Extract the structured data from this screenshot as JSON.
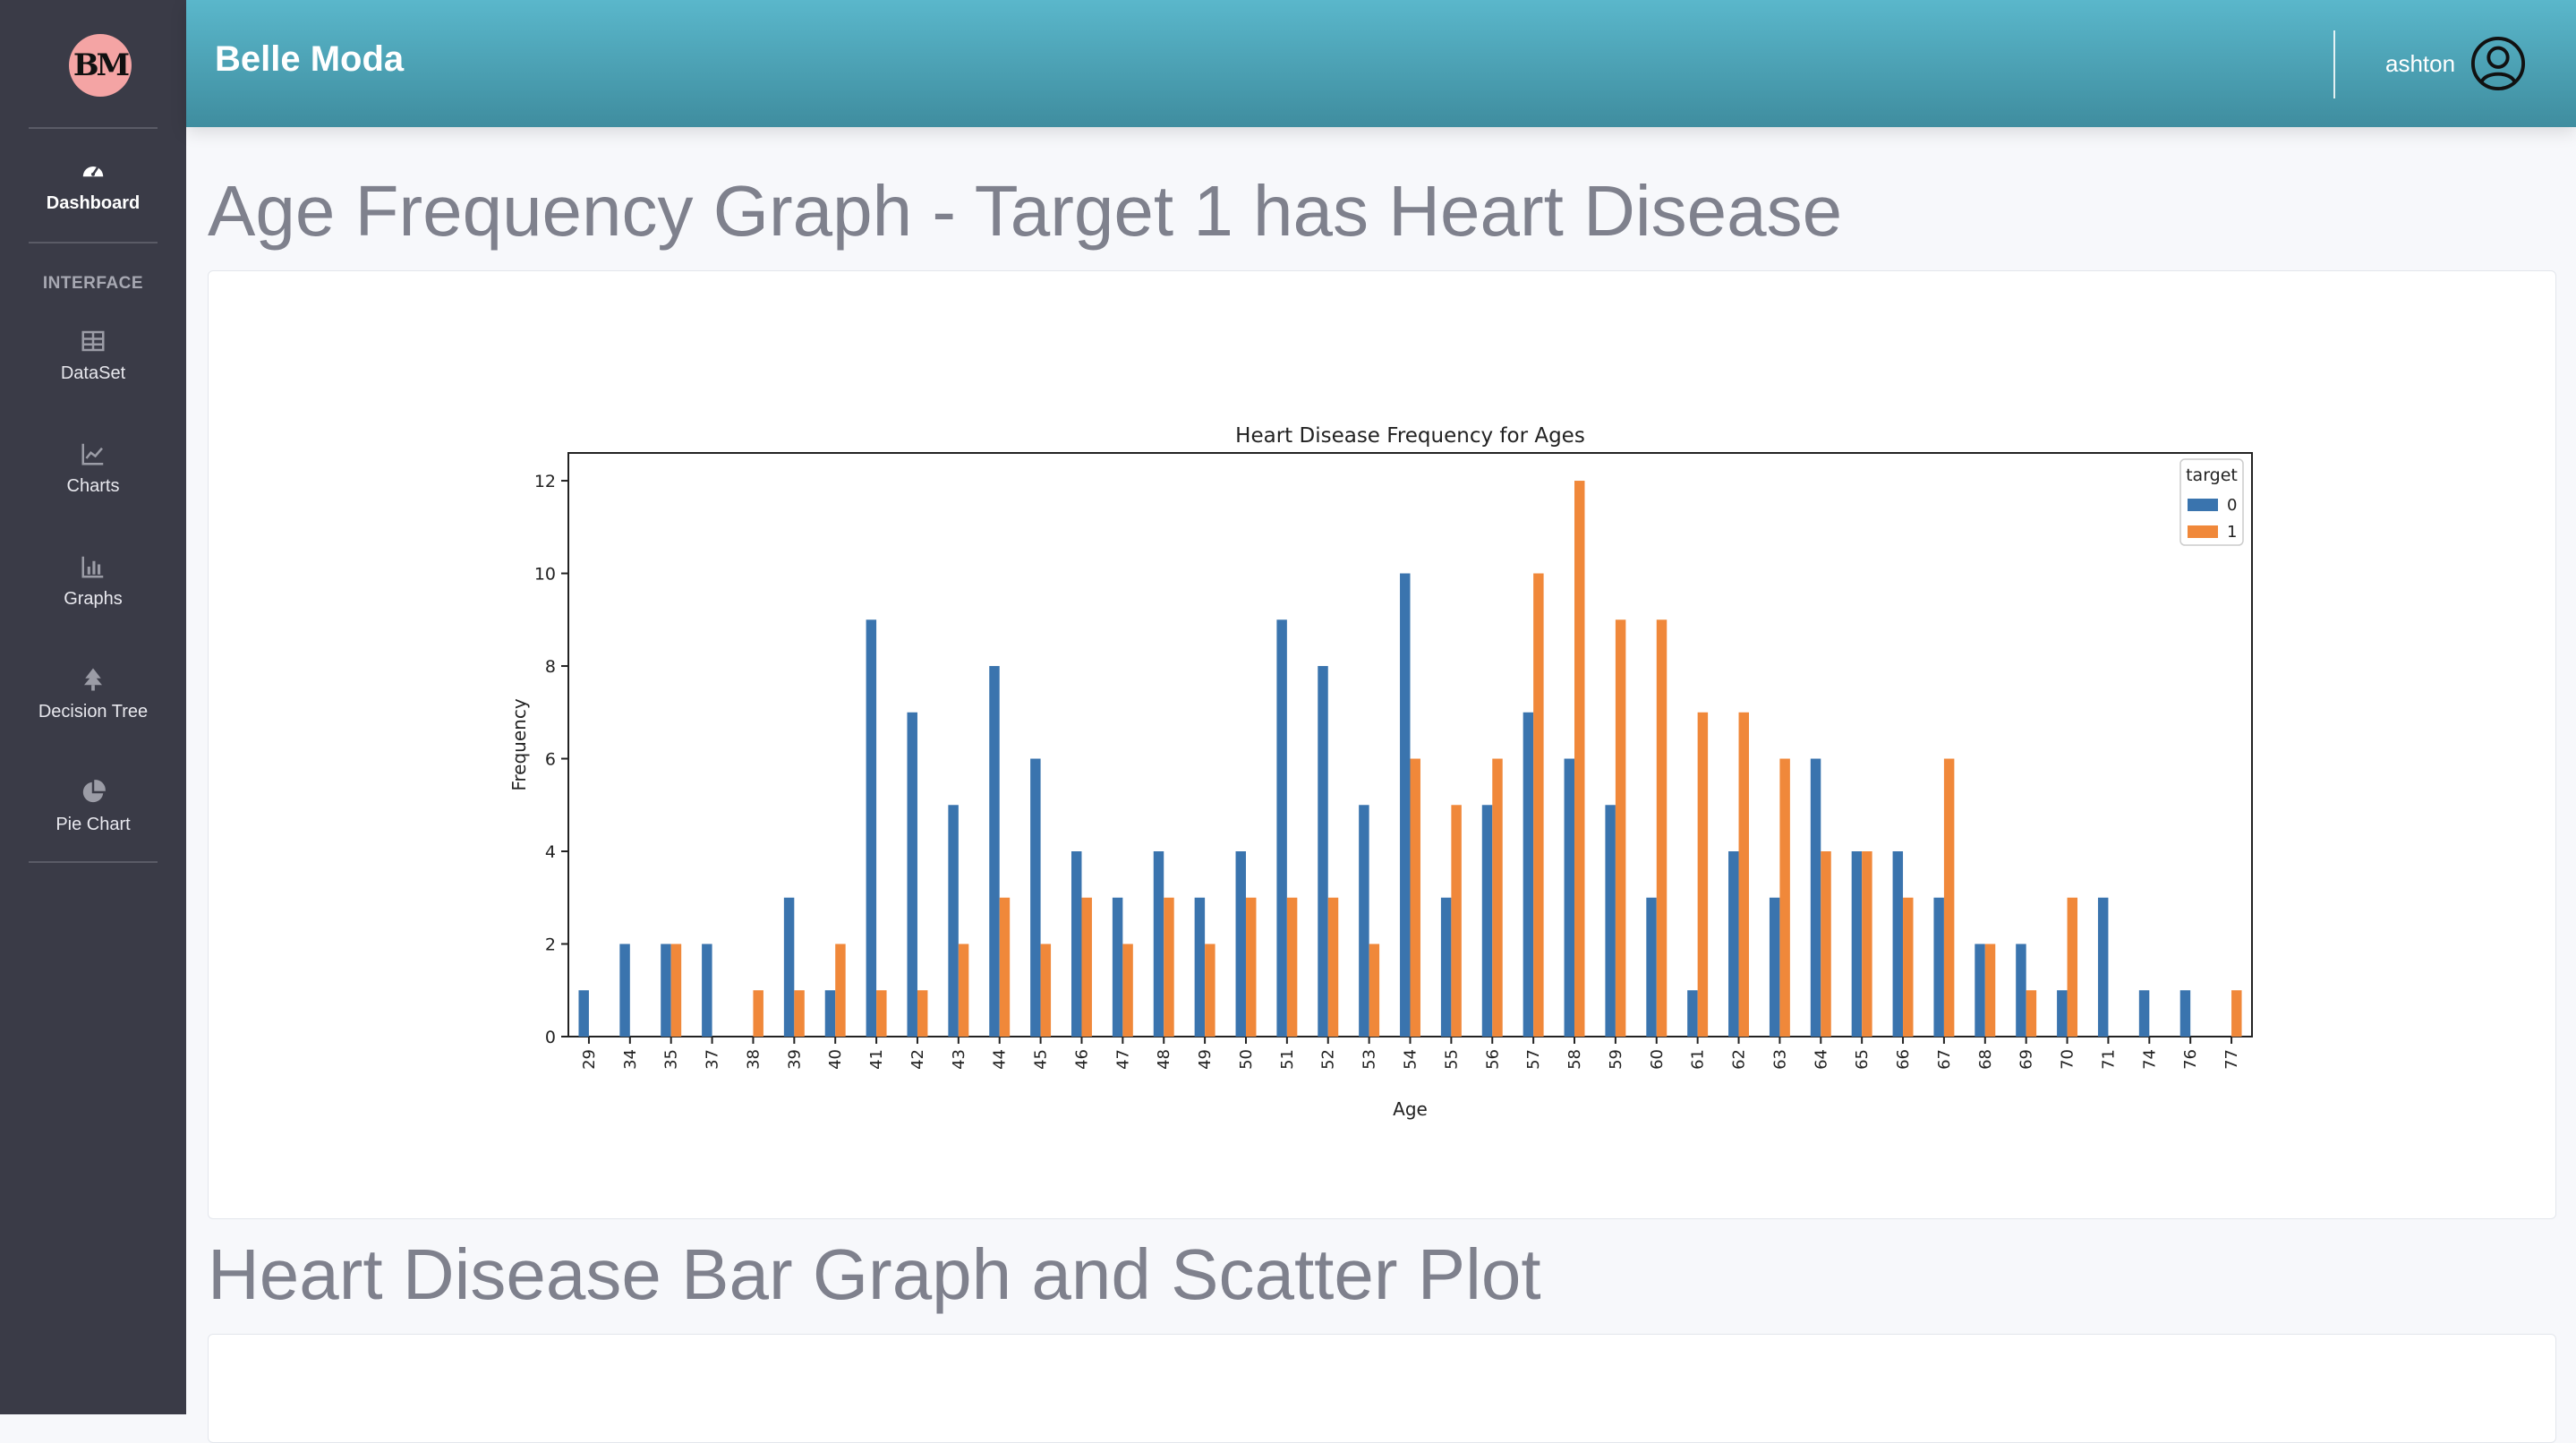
{
  "sidebar": {
    "logo_text": "BM",
    "items": [
      {
        "label": "Dashboard",
        "icon": "gauge-icon"
      },
      {
        "label": "DataSet",
        "icon": "table-icon"
      },
      {
        "label": "Charts",
        "icon": "line-chart-icon"
      },
      {
        "label": "Graphs",
        "icon": "bar-chart-icon"
      },
      {
        "label": "Decision Tree",
        "icon": "tree-icon"
      },
      {
        "label": "Pie Chart",
        "icon": "pie-chart-icon"
      }
    ],
    "heading": "INTERFACE"
  },
  "topbar": {
    "brand": "Belle Moda",
    "username": "ashton",
    "user_icon": "user-circle-icon"
  },
  "main": {
    "section1_title": "Age Frequency Graph - Target 1 has Heart Disease",
    "section2_title": "Heart Disease Bar Graph and Scatter Plot"
  },
  "colors": {
    "sidebar": "#3a3b47",
    "topbar": "#4fa6b9",
    "series0": "#3a74ae",
    "series1": "#f0883a"
  },
  "chart_data": {
    "type": "bar",
    "title": "Heart Disease Frequency for Ages",
    "xlabel": "Age",
    "ylabel": "Frequency",
    "ylim": [
      0,
      12.6
    ],
    "yticks": [
      0,
      2,
      4,
      6,
      8,
      10,
      12
    ],
    "grid": false,
    "legend_title": "target",
    "legend_position": "top-right",
    "categories": [
      "29",
      "34",
      "35",
      "37",
      "38",
      "39",
      "40",
      "41",
      "42",
      "43",
      "44",
      "45",
      "46",
      "47",
      "48",
      "49",
      "50",
      "51",
      "52",
      "53",
      "54",
      "55",
      "56",
      "57",
      "58",
      "59",
      "60",
      "61",
      "62",
      "63",
      "64",
      "65",
      "66",
      "67",
      "68",
      "69",
      "70",
      "71",
      "74",
      "76",
      "77"
    ],
    "series": [
      {
        "name": "0",
        "values": [
          1,
          2,
          2,
          2,
          0,
          3,
          1,
          9,
          7,
          5,
          8,
          6,
          4,
          3,
          4,
          3,
          4,
          9,
          8,
          5,
          10,
          3,
          5,
          7,
          6,
          5,
          3,
          1,
          4,
          3,
          6,
          4,
          4,
          3,
          2,
          2,
          1,
          3,
          1,
          1,
          0
        ]
      },
      {
        "name": "1",
        "values": [
          0,
          0,
          2,
          0,
          1,
          1,
          2,
          1,
          1,
          2,
          3,
          2,
          3,
          2,
          3,
          2,
          3,
          3,
          3,
          2,
          6,
          5,
          6,
          10,
          12,
          9,
          9,
          7,
          7,
          6,
          4,
          4,
          3,
          6,
          2,
          1,
          3,
          0,
          0,
          0,
          1
        ]
      }
    ]
  }
}
